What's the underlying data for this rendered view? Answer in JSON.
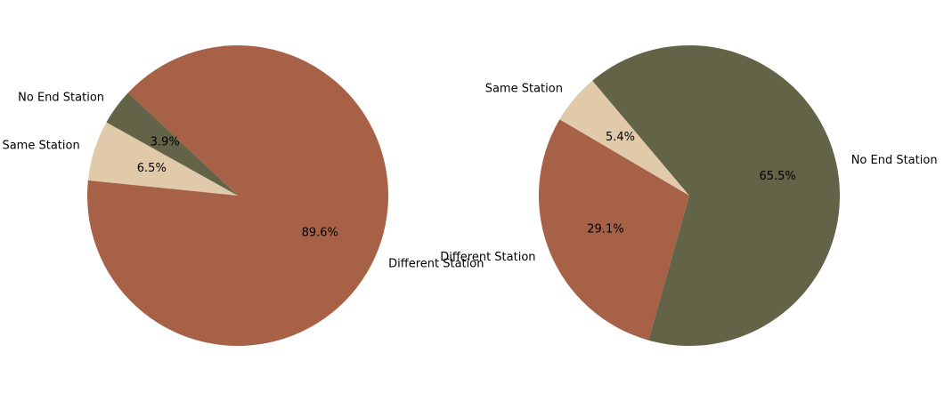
{
  "chart_data": [
    {
      "type": "pie",
      "categories": [
        "Same Station",
        "Different Station",
        "No End Station"
      ],
      "values": [
        6.5,
        89.6,
        3.9
      ],
      "percent_labels": [
        "6.5%",
        "89.6%",
        "3.9%"
      ],
      "colors": [
        "#e0caa9",
        "#a66147",
        "#626347"
      ],
      "title": ""
    },
    {
      "type": "pie",
      "categories": [
        "Same Station",
        "Different Station",
        "No End Station"
      ],
      "values": [
        5.4,
        29.1,
        65.5
      ],
      "percent_labels": [
        "5.4%",
        "29.1%",
        "65.5%"
      ],
      "colors": [
        "#e0caa9",
        "#a66147",
        "#626347"
      ],
      "title": ""
    }
  ]
}
